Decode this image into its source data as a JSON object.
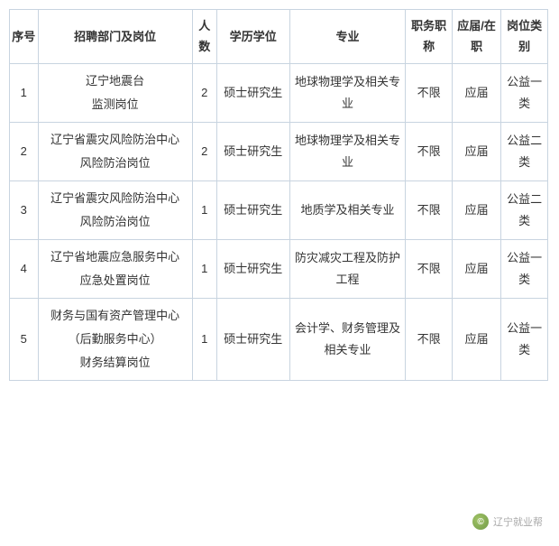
{
  "table": {
    "columns": [
      {
        "key": "seq",
        "label": "序号"
      },
      {
        "key": "dept",
        "label": "招聘部门及岗位"
      },
      {
        "key": "count",
        "label": "人数"
      },
      {
        "key": "edu",
        "label": "学历学位"
      },
      {
        "key": "major",
        "label": "专业"
      },
      {
        "key": "title",
        "label": "职务职称"
      },
      {
        "key": "grad",
        "label": "应届/在职"
      },
      {
        "key": "type",
        "label": "岗位类别"
      }
    ],
    "rows": [
      {
        "seq": "1",
        "dept": "辽宁地震台\n监测岗位",
        "count": "2",
        "edu": "硕士研究生",
        "major": "地球物理学及相关专业",
        "title": "不限",
        "grad": "应届",
        "type": "公益一类"
      },
      {
        "seq": "2",
        "dept": "辽宁省震灾风险防治中心\n风险防治岗位",
        "count": "2",
        "edu": "硕士研究生",
        "major": "地球物理学及相关专业",
        "title": "不限",
        "grad": "应届",
        "type": "公益二类"
      },
      {
        "seq": "3",
        "dept": "辽宁省震灾风险防治中心\n风险防治岗位",
        "count": "1",
        "edu": "硕士研究生",
        "major": "地质学及相关专业",
        "title": "不限",
        "grad": "应届",
        "type": "公益二类"
      },
      {
        "seq": "4",
        "dept": "辽宁省地震应急服务中心\n应急处置岗位",
        "count": "1",
        "edu": "硕士研究生",
        "major": "防灾减灾工程及防护工程",
        "title": "不限",
        "grad": "应届",
        "type": "公益一类"
      },
      {
        "seq": "5",
        "dept": "财务与国有资产管理中心\n（后勤服务中心）\n财务结算岗位",
        "count": "1",
        "edu": "硕士研究生",
        "major": "会计学、财务管理及相关专业",
        "title": "不限",
        "grad": "应届",
        "type": "公益一类"
      }
    ]
  },
  "watermark": {
    "icon": "©",
    "text": "辽宁就业帮"
  }
}
